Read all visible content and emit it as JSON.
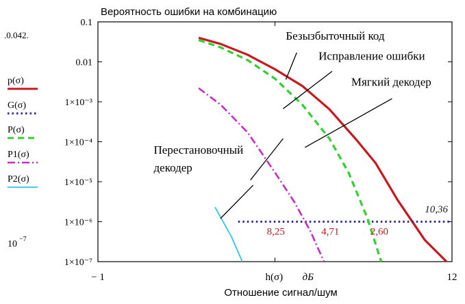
{
  "chart_data": {
    "type": "line",
    "title": "Вероятность ошибки на комбинацию",
    "xlabel": "Отношение сигнал/шум",
    "x_axis_expr": "h(σ)",
    "x_unit": "дБ",
    "x_tick_labels": [
      {
        "x": -1,
        "label": "− 1"
      },
      {
        "x": 12,
        "label": "12"
      }
    ],
    "xlim": [
      -1,
      12
    ],
    "ylim": [
      1e-07,
      0.1
    ],
    "yscale": "log",
    "y_tick_labels": [
      {
        "y": 0.1,
        "label": "0.1"
      },
      {
        "y": 0.01,
        "label": "0.01"
      },
      {
        "y": 0.001,
        "label": "1×10⁻³"
      },
      {
        "y": 0.0001,
        "label": "1×10⁻⁴"
      },
      {
        "y": 1e-05,
        "label": "1×10⁻⁵"
      },
      {
        "y": 1e-06,
        "label": "1×10⁻⁶"
      },
      {
        "y": 1e-07,
        "label": "1×10⁻⁷"
      }
    ],
    "y_top_marker": ".0.042.",
    "y_bottom_marker_base": "10",
    "y_bottom_marker_exp": "−7",
    "series": [
      {
        "legend": "p(σ)",
        "color": "#c8181e",
        "dash": "",
        "width": 3.2,
        "x": [
          2.7,
          3.5,
          4.5,
          5.5,
          6.5,
          7.5,
          8.5,
          9.2,
          10.0,
          11.0,
          11.8
        ],
        "y": [
          0.04,
          0.028,
          0.015,
          0.0065,
          0.0025,
          0.00065,
          0.00011,
          2.9e-05,
          3.5e-06,
          3.5e-07,
          1e-07
        ]
      },
      {
        "legend": "G(σ)",
        "color": "#2a2aa8",
        "dash": "2.5 4",
        "width": 3,
        "x": [
          4.15,
          12
        ],
        "y": [
          1e-06,
          1e-06
        ]
      },
      {
        "legend": "P(σ)",
        "color": "#2fd02f",
        "dash": "9 6",
        "width": 3.2,
        "x": [
          2.7,
          3.5,
          4.5,
          5.5,
          6.5,
          7.5,
          8.2,
          8.9,
          9.4
        ],
        "y": [
          0.035,
          0.023,
          0.011,
          0.0038,
          0.00085,
          0.00012,
          1.7e-05,
          1.2e-06,
          1e-07
        ]
      },
      {
        "legend": "P1(σ)",
        "color": "#c62bc6",
        "dash": "11 4 2 4",
        "width": 2.6,
        "x": [
          2.7,
          3.5,
          4.5,
          5.5,
          6.2,
          6.8,
          7.3
        ],
        "y": [
          0.0022,
          0.00085,
          0.00017,
          1.7e-05,
          3.2e-06,
          5.8e-07,
          1e-07
        ]
      },
      {
        "legend": "P2(σ)",
        "color": "#28c8e8",
        "dash": "",
        "width": 1.8,
        "x": [
          3.3,
          3.9,
          4.3
        ],
        "y": [
          2.3e-06,
          4.2e-07,
          1e-07
        ]
      }
    ],
    "annotations": [
      {
        "text": "Безызбыточный код",
        "tx": 5.9,
        "ty": 0.036,
        "lx1": 6.3,
        "ly1": 0.017,
        "lx2": 5.9,
        "ly2": 0.0036
      },
      {
        "text": "Исправление ошибки",
        "tx": 7.1,
        "ty": 0.0112,
        "lx1": 7.6,
        "ly1": 0.0058,
        "lx2": 5.8,
        "ly2": 0.00067
      },
      {
        "text": "Мягкий декодер",
        "tx": 8.3,
        "ty": 0.0025,
        "lx1": 9.8,
        "ly1": 0.0012,
        "lx2": 6.6,
        "ly2": 7.2e-05
      },
      {
        "text": "Перестановочный",
        "tx": 1.05,
        "ty": 5e-05,
        "lx1": null,
        "ly1": null,
        "lx2": null,
        "ly2": null
      },
      {
        "text": "декодер",
        "tx": 1.05,
        "ty": 1.8e-05,
        "lx1": 5.8,
        "ly1": 0.00012,
        "lx2": 4.6,
        "ly2": 1.1e-05
      },
      {
        "text": "",
        "tx": null,
        "ty": null,
        "lx1": 4.7,
        "ly1": 8.2e-06,
        "lx2": 3.5,
        "ly2": 1.2e-06
      }
    ],
    "value_labels": [
      {
        "text": "8,25",
        "x": 5.2,
        "y": 4.7e-07,
        "color": "#c8181e",
        "italic": false
      },
      {
        "text": "4,71",
        "x": 7.2,
        "y": 4.7e-07,
        "color": "#c8181e",
        "italic": false
      },
      {
        "text": "2,60",
        "x": 9.0,
        "y": 4.7e-07,
        "color": "#c8181e",
        "italic": false
      },
      {
        "text": "10,36",
        "x": 11.0,
        "y": 1.7e-06,
        "color": "#1a1a1a",
        "italic": true
      }
    ]
  }
}
